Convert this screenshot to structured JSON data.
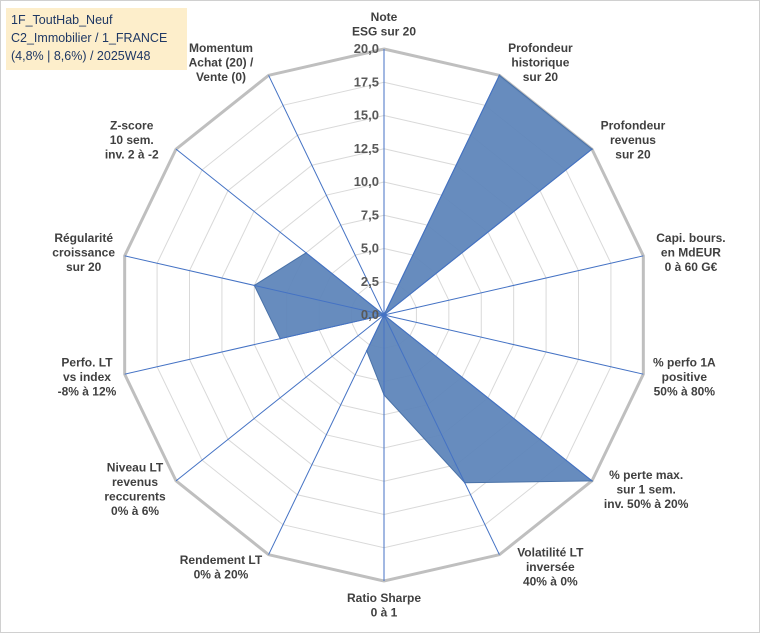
{
  "chart_title": {
    "line1": "1F_ToutHab_Neuf",
    "line2": "C2_Immobilier / 1_FRANCE",
    "line3": "(4,8% | 8,6%) / 2025W48"
  },
  "colors": {
    "fill": "#5f86ba",
    "stroke": "#4a72a8",
    "grid": "#d9d9d9",
    "outer_ring": "#bfbfbf",
    "axis": "#4472c4"
  },
  "chart_data": {
    "type": "radar",
    "range": [
      0,
      20
    ],
    "tick_step": 2.5,
    "tick_labels": [
      "0,0",
      "2,5",
      "5,0",
      "7,5",
      "10,0",
      "12,5",
      "15,0",
      "17,5",
      "20,0"
    ],
    "grid": true,
    "axes": [
      [
        "Note",
        "ESG sur 20"
      ],
      [
        "Profondeur",
        "historique",
        "sur 20"
      ],
      [
        "Profondeur",
        "revenus",
        "sur 20"
      ],
      [
        "Capi. bours.",
        "en MdEUR",
        "0 à 60 G€"
      ],
      [
        "% perfo 1A",
        "positive",
        "50% à 80%"
      ],
      [
        "% perte max.",
        "sur 1 sem.",
        "inv. 50% à 20%"
      ],
      [
        "Volatilité LT",
        "inversée",
        "40% à 0%"
      ],
      [
        "Ratio Sharpe",
        "0 à 1"
      ],
      [
        "Rendement LT",
        "0% à 20%"
      ],
      [
        "Niveau LT",
        "revenus",
        "reccurents",
        "0% à 6%"
      ],
      [
        "Perfo. LT",
        "vs index",
        "-8% à 12%"
      ],
      [
        "Régularité",
        "croissance",
        "sur 20"
      ],
      [
        "Z-score",
        "10 sem.",
        "inv. 2 à -2"
      ],
      [
        "Momentum",
        "Achat (20) /",
        "Vente (0)"
      ]
    ],
    "values": [
      0,
      20,
      20,
      0,
      0,
      20,
      14,
      6,
      3,
      0,
      8,
      10,
      7.5,
      0
    ]
  }
}
